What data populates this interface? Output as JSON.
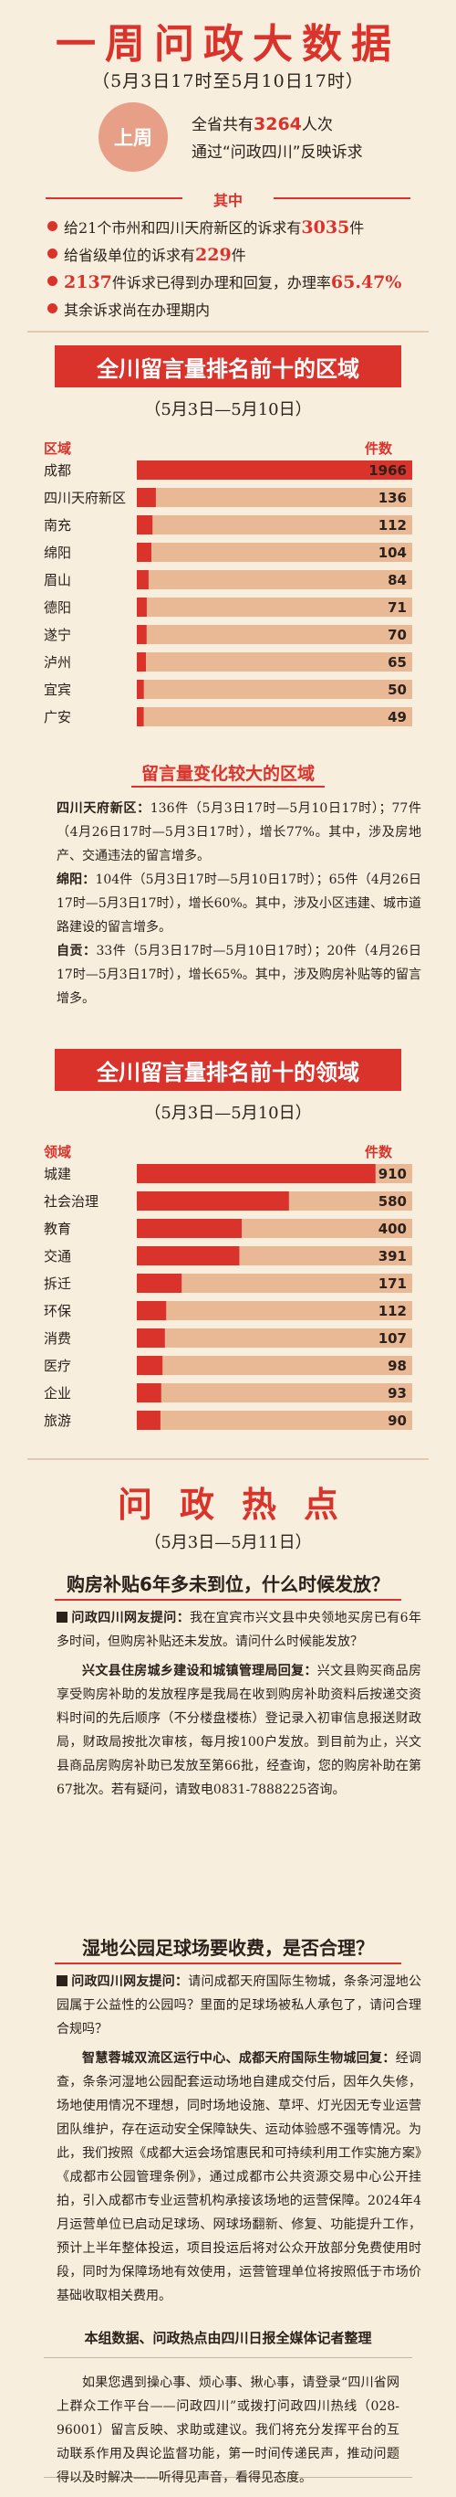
{
  "header": {
    "title": "一周问政大数据",
    "date_range": "（5月3日17时至5月10日17时）",
    "last_week_badge": "上周",
    "summary_line1_prefix": "全省共有",
    "summary_count": "3264",
    "summary_line1_suffix": "人次",
    "summary_line2": "通过“问政四川”反映诉求",
    "among_label": "其中",
    "bullets": [
      {
        "pre": "给21个市州和四川天府新区的诉求有",
        "num": "3035",
        "post": "件"
      },
      {
        "pre": "给省级单位的诉求有",
        "num": "229",
        "post": "件"
      },
      {
        "pre": "",
        "num": "2137",
        "post": "件诉求已得到办理和回复，办理率",
        "num2": "65.47%"
      },
      {
        "pre": "其余诉求尚在办理期内",
        "num": "",
        "post": ""
      }
    ]
  },
  "region_section": {
    "banner": "全川留言量排名前十的区域",
    "date_range": "（5月3日—5月10日）",
    "axis_left": "区域",
    "axis_right": "件数"
  },
  "change_section": {
    "heading": "留言量变化较大的区域",
    "paragraphs": [
      {
        "lead": "四川天府新区：",
        "text": "136件（5月3日17时—5月10日17时）；77件（4月26日17时—5月3日17时），增长77%。其中，涉及房地产、交通违法的留言增多。"
      },
      {
        "lead": "绵阳：",
        "text": "104件（5月3日17时—5月10日17时）；65件（4月26日17时—5月3日17时），增长60%。其中，涉及小区违建、城市道路建设的留言增多。"
      },
      {
        "lead": "自贡：",
        "text": "33件（5月3日17时—5月10日17时）；20件（4月26日17时—5月3日17时），增长65%。其中，涉及购房补贴等的留言增多。"
      }
    ]
  },
  "field_section": {
    "banner": "全川留言量排名前十的领域",
    "date_range": "（5月3日—5月10日）",
    "axis_left": "领域",
    "axis_right": "件数"
  },
  "chart_data": [
    {
      "type": "bar",
      "orientation": "horizontal",
      "title": "全川留言量排名前十的区域",
      "subtitle": "（5月3日—5月10日）",
      "xlabel": "件数",
      "ylabel": "区域",
      "categories": [
        "成都",
        "四川天府新区",
        "南充",
        "绵阳",
        "眉山",
        "德阳",
        "遂宁",
        "泸州",
        "宜宾",
        "广安"
      ],
      "values": [
        1966,
        136,
        112,
        104,
        84,
        71,
        70,
        65,
        50,
        49
      ],
      "value_labels": [
        "1966",
        "136",
        "112",
        "104",
        "84",
        "71",
        "70",
        "65",
        "50",
        "49"
      ],
      "xlim": [
        0,
        1966
      ],
      "bar_color": "#d9332c",
      "track_color": "#e9b996",
      "grid": false,
      "legend": "none"
    },
    {
      "type": "bar",
      "orientation": "horizontal",
      "title": "全川留言量排名前十的领域",
      "subtitle": "（5月3日—5月10日）",
      "xlabel": "件数",
      "ylabel": "领域",
      "categories": [
        "城建",
        "社会治理",
        "教育",
        "交通",
        "拆迁",
        "环保",
        "消费",
        "医疗",
        "企业",
        "旅游"
      ],
      "values": [
        910,
        580,
        400,
        391,
        171,
        112,
        107,
        98,
        93,
        90
      ],
      "value_labels": [
        "910",
        "580",
        "400",
        "391",
        "171",
        "112",
        "107",
        "98",
        "93",
        "90"
      ],
      "xlim": [
        0,
        1050
      ],
      "bar_color": "#d9332c",
      "track_color": "#e9b996",
      "grid": false,
      "legend": "none"
    }
  ],
  "hot_section": {
    "title": "问政热点",
    "date_range": "（5月3日—5月11日）",
    "topics": [
      {
        "question": "购房补贴6年多未到位，什么时候发放？",
        "netizen_lead": "问政四川网友提问：",
        "netizen_text": "我在宜宾市兴文县中央领地买房已有6年多时间，但购房补贴还未发放。请问什么时候能发放？",
        "reply_lead": "兴文县住房城乡建设和城镇管理局回复：",
        "reply_text": "兴文县购买商品房享受购房补助的发放程序是我局在收到购房补助资料后按递交资料时间的先后顺序（不分楼盘楼栋）登记录入初审信息报送财政局，财政局按批次审核，每月按100户发放。到目前为止，兴文县商品房购房补助已发放至第66批，经查询，您的购房补助在第67批次。若有疑问，请致电0831-7888225咨询。"
      },
      {
        "question": "湿地公园足球场要收费，是否合理？",
        "netizen_lead": "问政四川网友提问：",
        "netizen_text": "请问成都天府国际生物城，条条河湿地公园属于公益性的公园吗？里面的足球场被私人承包了，请问合理合规吗？",
        "reply_lead": "智慧蓉城双流区运行中心、成都天府国际生物城回复：",
        "reply_text": "经调查，条条河湿地公园配套运动场地自建成交付后，因年久失修，场地使用情况不理想，同时场地设施、草坪、灯光因无专业运营团队维护，存在运动安全保障缺失、运动体验感不强等情况。为此，我们按照《成都大运会场馆惠民和可持续利用工作实施方案》《成都市公园管理条例》，通过成都市公共资源交易中心公开挂拍，引入成都市专业运营机构承接该场地的运营保障。2024年4月运营单位已启动足球场、网球场翻新、修复、功能提升工作，预计上半年整体投运，项目投运后将对公众开放部分免费使用时段，同时为保障场地有效使用，运营管理单位将按照低于市场价基础收取相关费用。"
      }
    ],
    "source": "本组数据、问政热点由四川日报全媒体记者整理"
  },
  "footer": {
    "text": "如果您遇到操心事、烦心事、揪心事，请登录“四川省网上群众工作平台——问政四川”或拨打问政四川热线（028-96001）留言反映、求助或建议。我们将充分发挥平台的互动联系作用及舆论监督功能，第一时间传递民声，推动问题得以及时解决——听得见声音，看得见态度。"
  }
}
